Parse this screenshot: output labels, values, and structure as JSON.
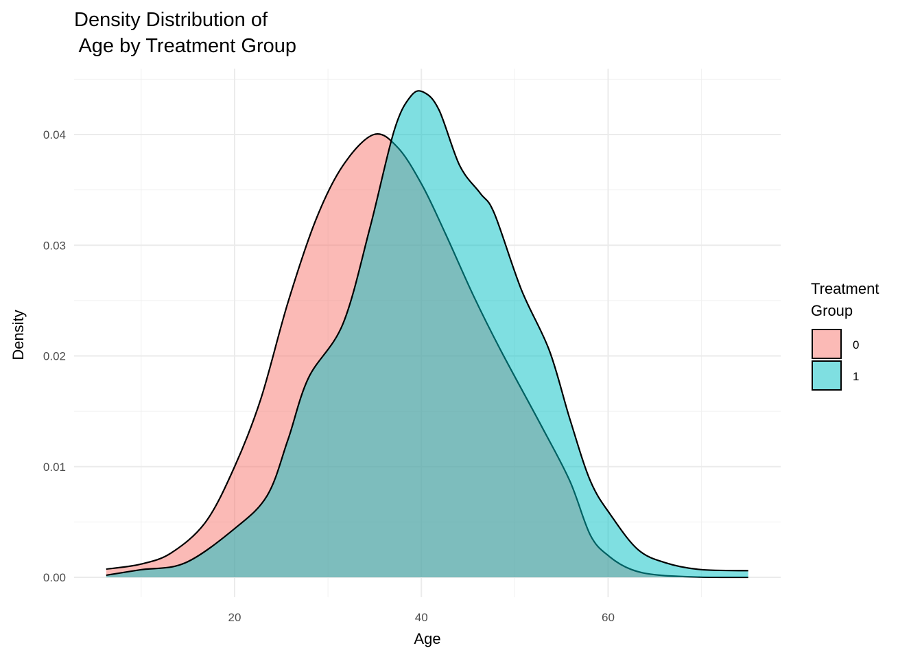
{
  "chart_data": {
    "type": "area",
    "title": "Density Distribution of\n Age by Treatment Group",
    "xlabel": "Age",
    "ylabel": "Density",
    "xlim": [
      3,
      79
    ],
    "ylim": [
      -0.0018,
      0.0458
    ],
    "x_ticks": [
      20,
      40,
      60
    ],
    "y_ticks": [
      0.0,
      0.01,
      0.02,
      0.03,
      0.04
    ],
    "y_tick_labels": [
      "0.00",
      "0.01",
      "0.02",
      "0.03",
      "0.04"
    ],
    "x_tick_labels": [
      "20",
      "40",
      "60"
    ],
    "grid": true,
    "legend": {
      "title": "Treatment\nGroup",
      "position": "right",
      "entries": [
        "0",
        "1"
      ]
    },
    "series": [
      {
        "name": "0",
        "color": "#F8766D",
        "x": [
          6.25,
          9.9,
          13.2,
          16.9,
          20,
          22.8,
          25.7,
          28.7,
          31.6,
          34.9,
          37.5,
          40.1,
          42.6,
          45.6,
          48.5,
          52.9,
          55.9,
          58.1,
          60.1,
          62.5,
          65.4,
          69.9,
          75
        ],
        "y": [
          0.00074,
          0.00118,
          0.0022,
          0.005,
          0.01,
          0.0161,
          0.0248,
          0.0323,
          0.0372,
          0.04,
          0.0388,
          0.0354,
          0.031,
          0.0254,
          0.0205,
          0.0136,
          0.0087,
          0.0038,
          0.0019,
          0.0007,
          0.0002,
          2e-05,
          0.0
        ]
      },
      {
        "name": "1",
        "color": "#00BFC4",
        "x": [
          6.25,
          9.9,
          14.7,
          20,
          23.5,
          25.7,
          27.9,
          31.6,
          34.5,
          37.1,
          38.9,
          40.3,
          41.9,
          44.1,
          46.3,
          47.8,
          50.7,
          53.7,
          55.9,
          58.1,
          60.3,
          63.2,
          66.2,
          69.9,
          75
        ],
        "y": [
          0.00019,
          0.00068,
          0.0013,
          0.0044,
          0.0074,
          0.0124,
          0.018,
          0.0229,
          0.0316,
          0.0404,
          0.0435,
          0.0438,
          0.0422,
          0.0372,
          0.0347,
          0.0329,
          0.026,
          0.0205,
          0.0143,
          0.0087,
          0.0056,
          0.0025,
          0.0013,
          0.0007,
          0.0006
        ]
      }
    ]
  }
}
